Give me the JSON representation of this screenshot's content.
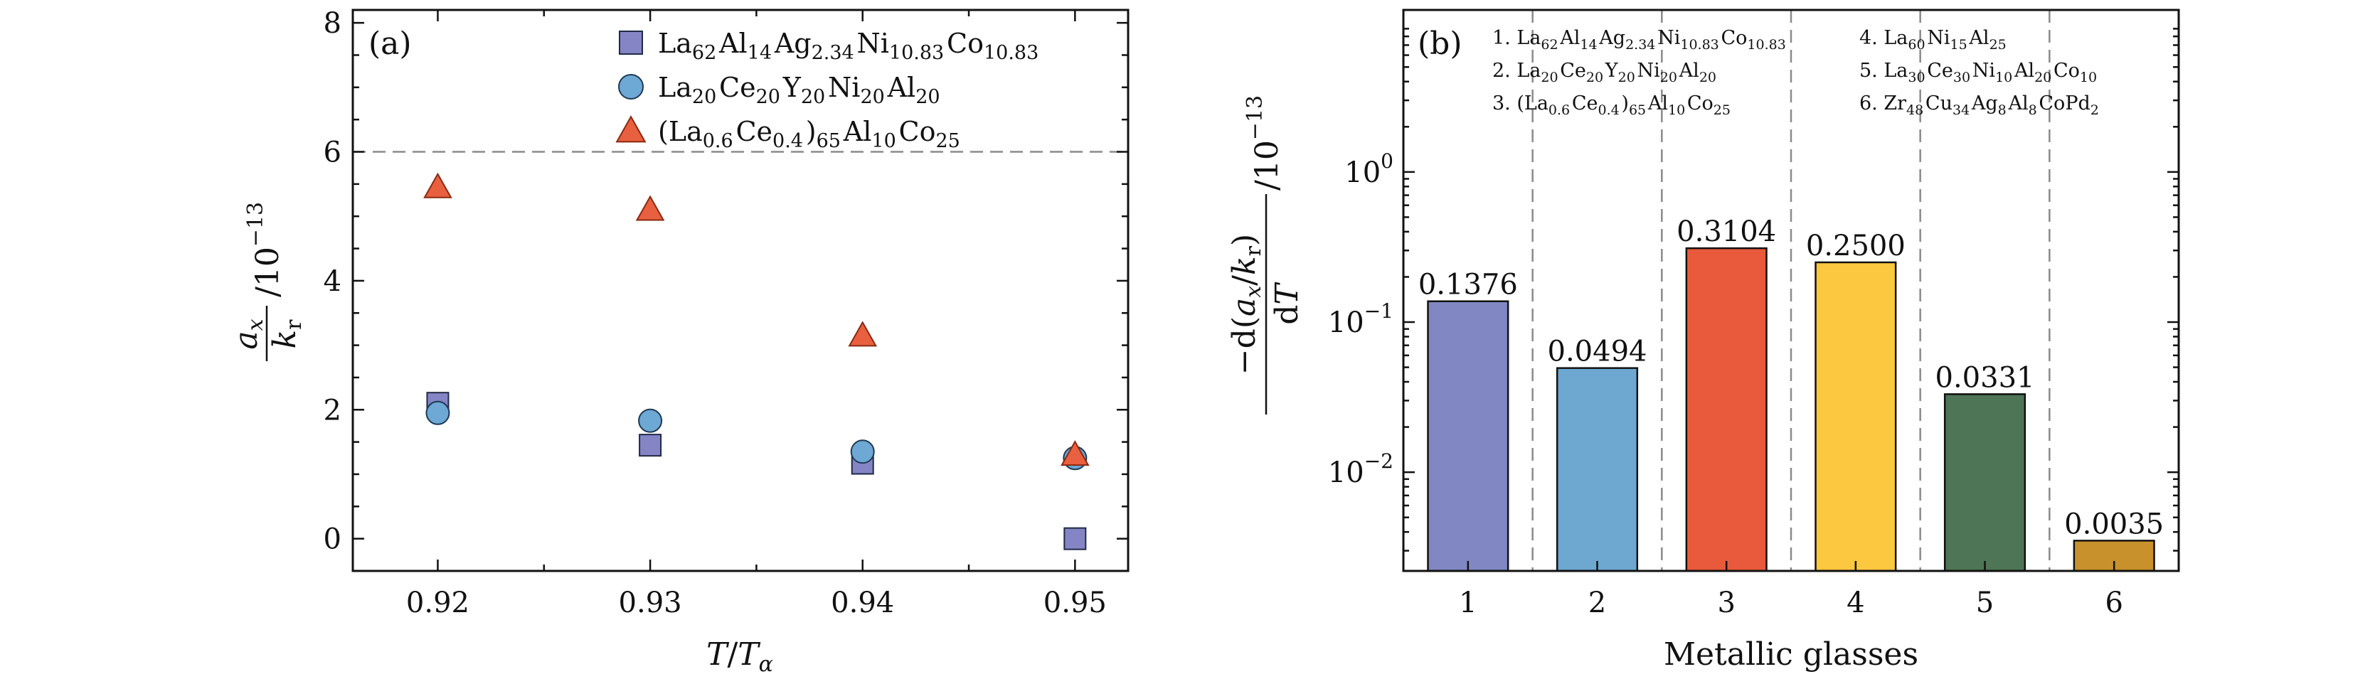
{
  "chart_data": [
    {
      "panel": "(a)",
      "type": "scatter",
      "xlabel": "T/Tα",
      "ylabel": "(a_x/k_r)/10^-13",
      "xlim": [
        0.916,
        0.9525
      ],
      "ylim": [
        -0.5,
        8.2
      ],
      "x_ticks": [
        0.92,
        0.93,
        0.94,
        0.95
      ],
      "x_tick_labels": [
        "0.92",
        "0.93",
        "0.94",
        "0.95"
      ],
      "y_ticks": [
        0,
        2,
        4,
        6,
        8
      ],
      "y_tick_labels": [
        "0",
        "2",
        "4",
        "6",
        "8"
      ],
      "reference_line": {
        "y": 6,
        "style": "dashed"
      },
      "series": [
        {
          "name": "La62Al14Ag2.34Ni10.83Co10.83",
          "legend": {
            "base": [
              [
                "La",
                "62"
              ],
              [
                "Al",
                "14"
              ],
              [
                "Ag",
                "2.34"
              ],
              [
                "Ni",
                "10.83"
              ],
              [
                "Co",
                "10.83"
              ]
            ]
          },
          "marker": "square",
          "color": "#8585c6",
          "x": [
            0.92,
            0.93,
            0.94,
            0.95
          ],
          "y": [
            2.1,
            1.45,
            1.17,
            0.0
          ]
        },
        {
          "name": "La20Ce20Y20Ni20Al20",
          "legend": {
            "base": [
              [
                "La",
                "20"
              ],
              [
                "Ce",
                "20"
              ],
              [
                "Y",
                "20"
              ],
              [
                "Ni",
                "20"
              ],
              [
                "Al",
                "20"
              ]
            ]
          },
          "marker": "circle",
          "color": "#6ea8d4",
          "x": [
            0.92,
            0.93,
            0.94,
            0.95
          ],
          "y": [
            1.95,
            1.83,
            1.35,
            1.25
          ]
        },
        {
          "name": "(La0.6Ce0.4)65Al10Co25",
          "legend": {
            "group": [
              [
                "La",
                "0.6"
              ],
              [
                "Ce",
                "0.4"
              ]
            ],
            "group_sub": "65",
            "base": [
              [
                "Al",
                "10"
              ],
              [
                "Co",
                "25"
              ]
            ]
          },
          "marker": "triangle",
          "color": "#e8603f",
          "x": [
            0.92,
            0.93,
            0.94,
            0.95
          ],
          "y": [
            5.45,
            5.1,
            3.15,
            1.3
          ]
        }
      ]
    },
    {
      "panel": "(b)",
      "type": "bar",
      "yscale": "log",
      "xlabel": "Metallic glasses",
      "ylabel": "−d(a_x/k_r)/dT /10^-13",
      "ylim": [
        0.0022,
        12
      ],
      "y_ticks": [
        0.01,
        0.1,
        1
      ],
      "y_tick_labels": [
        {
          "base": "10",
          "exp": "−2"
        },
        {
          "base": "10",
          "exp": "−1"
        },
        {
          "base": "10",
          "exp": "0"
        }
      ],
      "categories": [
        "1",
        "2",
        "3",
        "4",
        "5",
        "6"
      ],
      "values": [
        0.1376,
        0.0494,
        0.3104,
        0.25,
        0.0331,
        0.0035
      ],
      "value_labels": [
        "0.1376",
        "0.0494",
        "0.3104",
        "0.2500",
        "0.0331",
        "0.0035"
      ],
      "colors": [
        "#8187c3",
        "#6ea8d0",
        "#e85a3b",
        "#fcc840",
        "#4e7555",
        "#c8912c"
      ],
      "legend_items": [
        {
          "num": "1.",
          "parts": [
            [
              "La",
              "62"
            ],
            [
              "Al",
              "14"
            ],
            [
              "Ag",
              "2.34"
            ],
            [
              "Ni",
              "10.83"
            ],
            [
              "Co",
              "10.83"
            ]
          ]
        },
        {
          "num": "2.",
          "parts": [
            [
              "La",
              "20"
            ],
            [
              "Ce",
              "20"
            ],
            [
              "Y",
              "20"
            ],
            [
              "Ni",
              "20"
            ],
            [
              "Al",
              "20"
            ]
          ]
        },
        {
          "num": "3.",
          "group": [
            [
              "La",
              "0.6"
            ],
            [
              "Ce",
              "0.4"
            ]
          ],
          "group_sub": "65",
          "parts": [
            [
              "Al",
              "10"
            ],
            [
              "Co",
              "25"
            ]
          ]
        },
        {
          "num": "4.",
          "parts": [
            [
              "La",
              "60"
            ],
            [
              "Ni",
              "15"
            ],
            [
              "Al",
              "25"
            ]
          ]
        },
        {
          "num": "5.",
          "parts": [
            [
              "La",
              "30"
            ],
            [
              "Ce",
              "30"
            ],
            [
              "Ni",
              "10"
            ],
            [
              "Al",
              "20"
            ],
            [
              "Co",
              "10"
            ]
          ]
        },
        {
          "num": "6.",
          "parts": [
            [
              "Zr",
              "48"
            ],
            [
              "Cu",
              "34"
            ],
            [
              "Ag",
              "8"
            ],
            [
              "Al",
              "8"
            ],
            [
              "Co"
            ],
            [
              "Pd",
              "2"
            ]
          ]
        }
      ]
    }
  ]
}
